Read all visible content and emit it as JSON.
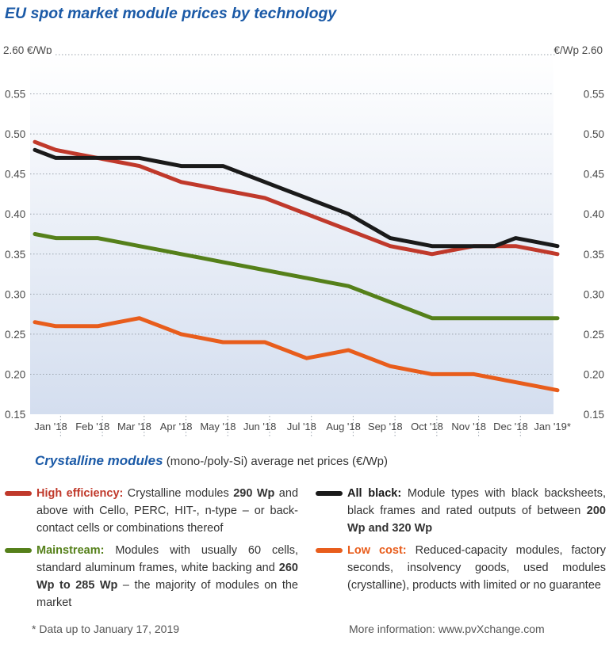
{
  "title": "EU spot market module prices  by technology",
  "unit_left": "2.60 €/Wp",
  "unit_right": "€/Wp  2.60",
  "subtitle": {
    "lead": "Crystalline modules",
    "rest": " (mono-/poly-Si) average net prices (€/Wp)"
  },
  "colors": {
    "high_efficiency": "#c0392b",
    "all_black": "#1a1a1a",
    "mainstream": "#55801a",
    "low_cost": "#e85d1c",
    "plot_fill_top": "#ffffff",
    "plot_fill_bottom": "#d4deef",
    "grid": "#9aa3ad",
    "title_blue": "#1b5aa7"
  },
  "chart_data": {
    "type": "line",
    "title": "EU spot market module prices  by technology",
    "ylabel": "€/Wp",
    "ylim": [
      0.15,
      0.6
    ],
    "y_ticks": [
      "0.15",
      "0.20",
      "0.25",
      "0.30",
      "0.35",
      "0.40",
      "0.45",
      "0.50",
      "0.55"
    ],
    "x_labels": [
      "Jan '18",
      "Feb '18",
      "Mar '18",
      "Apr '18",
      "May '18",
      "Jun '18",
      "Jul '18",
      "Aug '18",
      "Sep '18",
      "Oct '18",
      "Nov '18",
      "Dec '18",
      "Jan '19*"
    ],
    "x_label_index": [
      0,
      2,
      4,
      6,
      8,
      10,
      12,
      14,
      16,
      18,
      20,
      22,
      24
    ],
    "grid": true,
    "series": [
      {
        "key": "high_efficiency",
        "name": "High efficiency",
        "values": [
          0.49,
          0.48,
          0.475,
          0.47,
          0.465,
          0.46,
          0.45,
          0.44,
          0.435,
          0.43,
          0.425,
          0.42,
          0.41,
          0.4,
          0.39,
          0.38,
          0.37,
          0.36,
          0.355,
          0.35,
          0.355,
          0.36,
          0.36,
          0.36,
          0.355,
          0.35
        ]
      },
      {
        "key": "all_black",
        "name": "All black",
        "values": [
          0.48,
          0.47,
          0.47,
          0.47,
          0.47,
          0.47,
          0.465,
          0.46,
          0.46,
          0.46,
          0.45,
          0.44,
          0.43,
          0.42,
          0.41,
          0.4,
          0.385,
          0.37,
          0.365,
          0.36,
          0.36,
          0.36,
          0.36,
          0.37,
          0.365,
          0.36
        ]
      },
      {
        "key": "mainstream",
        "name": "Mainstream",
        "values": [
          0.375,
          0.37,
          0.37,
          0.37,
          0.365,
          0.36,
          0.355,
          0.35,
          0.345,
          0.34,
          0.335,
          0.33,
          0.325,
          0.32,
          0.315,
          0.31,
          0.3,
          0.29,
          0.28,
          0.27,
          0.27,
          0.27,
          0.27,
          0.27,
          0.27,
          0.27
        ]
      },
      {
        "key": "low_cost",
        "name": "Low cost",
        "values": [
          0.265,
          0.26,
          0.26,
          0.26,
          0.265,
          0.27,
          0.26,
          0.25,
          0.245,
          0.24,
          0.24,
          0.24,
          0.23,
          0.22,
          0.225,
          0.23,
          0.22,
          0.21,
          0.205,
          0.2,
          0.2,
          0.2,
          0.195,
          0.19,
          0.185,
          0.18
        ]
      }
    ]
  },
  "legend": {
    "high_efficiency": {
      "name": "High efficiency:",
      "p1": " Crystalline modules ",
      "b1": "290 Wp",
      "p2": " and above with Cello, PERC, HIT-, n-type – or back-contact cells or combinations thereof",
      "b2": "",
      "p3": ""
    },
    "all_black": {
      "name": "All black:",
      "p1": " Module types with black backsheets, black frames and rated outputs of between ",
      "b1": "200 Wp and 320 Wp",
      "p2": "",
      "b2": "",
      "p3": ""
    },
    "mainstream": {
      "name": "Mainstream:",
      "p1": " Modules with usually 60 cells, standard aluminum frames, white backing and ",
      "b1": "260 Wp to 285 Wp",
      "p2": " – the majority of modules on the market",
      "b2": "",
      "p3": ""
    },
    "low_cost": {
      "name": "Low cost:",
      "p1": " Reduced-capacity modules, factory seconds, insolvency goods, used modules (crystalline), products with limited or no guarantee",
      "b1": "",
      "p2": "",
      "b2": "",
      "p3": ""
    }
  },
  "footnote_left": "* Data up to January 17, 2019",
  "footnote_right": "More information: www.pvXchange.com"
}
